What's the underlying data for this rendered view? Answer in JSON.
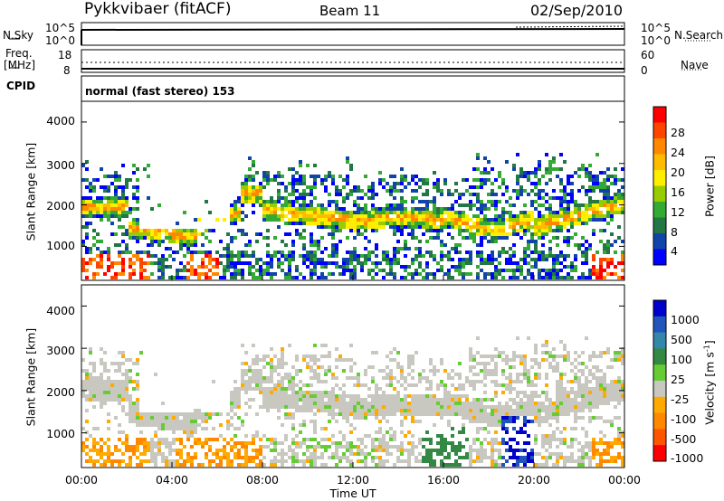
{
  "header": {
    "station": "Pykkvibaer (fitACF)",
    "beam": "Beam 11",
    "date": "02/Sep/2010"
  },
  "top_panels": {
    "nsky_label": "N.Sky",
    "nsky_ticks": [
      "10^5",
      "10^0"
    ],
    "nsearch_label": "N.Search",
    "nsearch_ticks": [
      "10^5",
      "10^0"
    ],
    "freq_label": "Freq.",
    "freq_unit": "[MHz]",
    "freq_ticks": [
      "18",
      "8"
    ],
    "nave_label": "Nave",
    "nave_ticks": [
      "60",
      "0"
    ],
    "cpid_label": "CPID",
    "cpid_text": "normal (fast stereo) 153"
  },
  "chart_data": [
    {
      "type": "heatmap",
      "name": "power",
      "ylabel": "Slant Range [km]",
      "yticks": [
        "4000",
        "3000",
        "2000",
        "1000"
      ],
      "ylim": [
        180,
        4500
      ],
      "xlim": [
        0,
        24
      ],
      "colorbar": {
        "label": "Power [dB]",
        "ticks": [
          "28",
          "24",
          "20",
          "16",
          "12",
          "8",
          "4"
        ],
        "colors": [
          "#ff0000",
          "#ff4400",
          "#ff8800",
          "#ffbb00",
          "#ffee00",
          "#99cc00",
          "#33aa33",
          "#227744",
          "#1144aa",
          "#0000ff"
        ]
      }
    },
    {
      "type": "heatmap",
      "name": "velocity",
      "ylabel": "Slant Range [km]",
      "yticks": [
        "4000",
        "3000",
        "2000",
        "1000"
      ],
      "ylim": [
        180,
        4500
      ],
      "xlim": [
        0,
        24
      ],
      "xticks": [
        "00:00",
        "04:00",
        "08:00",
        "12:00",
        "16:00",
        "20:00",
        "00:00"
      ],
      "xlabel": "Time UT",
      "colorbar": {
        "label": "Velocity [m s-1]",
        "label_main": "Velocity [m s",
        "label_sup": "-1",
        "label_end": "]",
        "ticks": [
          "1000",
          "500",
          "100",
          "25",
          "-25",
          "-100",
          "-500",
          "-1000"
        ],
        "colors": [
          "#0000cc",
          "#2255bb",
          "#3388aa",
          "#338844",
          "#66cc33",
          "#c8c8c0",
          "#ffaa00",
          "#ff8800",
          "#ff5500",
          "#ff0000"
        ]
      }
    }
  ]
}
